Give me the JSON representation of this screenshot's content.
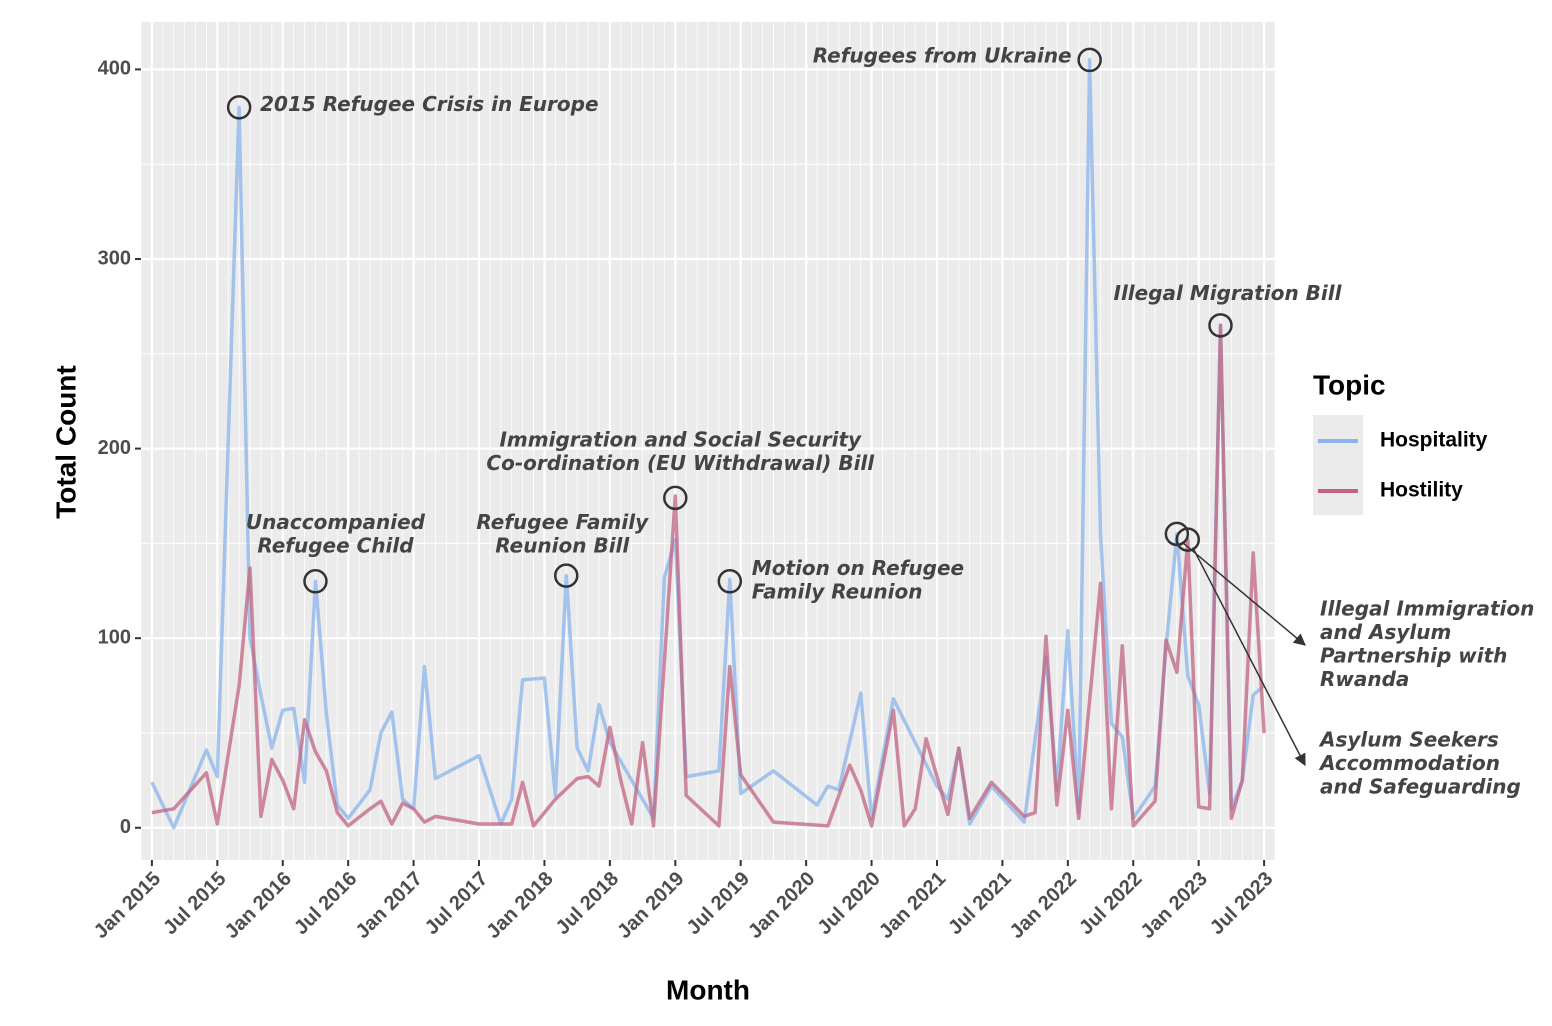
{
  "chart_data": {
    "type": "line",
    "x_label": "Month",
    "y_label": "Total Count",
    "legend_title": "Topic",
    "xlim": [
      "2014-12",
      "2023-08"
    ],
    "ylim": [
      -17,
      425
    ],
    "xticks": [
      {
        "value": "2015-01",
        "label": "Jan 2015"
      },
      {
        "value": "2015-07",
        "label": "Jul 2015"
      },
      {
        "value": "2016-01",
        "label": "Jan 2016"
      },
      {
        "value": "2016-07",
        "label": "Jul 2016"
      },
      {
        "value": "2017-01",
        "label": "Jan 2017"
      },
      {
        "value": "2017-07",
        "label": "Jul 2017"
      },
      {
        "value": "2018-01",
        "label": "Jan 2018"
      },
      {
        "value": "2018-07",
        "label": "Jul 2018"
      },
      {
        "value": "2019-01",
        "label": "Jan 2019"
      },
      {
        "value": "2019-07",
        "label": "Jul 2019"
      },
      {
        "value": "2020-01",
        "label": "Jan 2020"
      },
      {
        "value": "2020-07",
        "label": "Jul 2020"
      },
      {
        "value": "2021-01",
        "label": "Jan 2021"
      },
      {
        "value": "2021-07",
        "label": "Jul 2021"
      },
      {
        "value": "2022-01",
        "label": "Jan 2022"
      },
      {
        "value": "2022-07",
        "label": "Jul 2022"
      },
      {
        "value": "2023-01",
        "label": "Jan 2023"
      },
      {
        "value": "2023-07",
        "label": "Jul 2023"
      }
    ],
    "yticks": [
      0,
      100,
      200,
      300,
      400
    ],
    "grid": true,
    "series": [
      {
        "name": "Hospitality",
        "color": "#8ab4ec",
        "x": [
          "2015-01",
          "2015-03",
          "2015-06",
          "2015-07",
          "2015-09",
          "2015-10",
          "2015-11",
          "2015-12",
          "2016-01",
          "2016-02",
          "2016-03",
          "2016-04",
          "2016-05",
          "2016-06",
          "2016-07",
          "2016-09",
          "2016-10",
          "2016-11",
          "2016-12",
          "2017-01",
          "2017-02",
          "2017-03",
          "2017-07",
          "2017-09",
          "2017-10",
          "2017-11",
          "2018-01",
          "2018-02",
          "2018-03",
          "2018-04",
          "2018-05",
          "2018-06",
          "2018-07",
          "2018-09",
          "2018-11",
          "2018-12",
          "2019-01",
          "2019-02",
          "2019-05",
          "2019-06",
          "2019-07",
          "2019-10",
          "2020-02",
          "2020-03",
          "2020-04",
          "2020-06",
          "2020-07",
          "2020-09",
          "2020-11",
          "2021-01",
          "2021-02",
          "2021-03",
          "2021-04",
          "2021-06",
          "2021-09",
          "2021-11",
          "2021-12",
          "2022-01",
          "2022-02",
          "2022-03",
          "2022-04",
          "2022-05",
          "2022-06",
          "2022-07",
          "2022-09",
          "2022-10",
          "2022-11",
          "2022-12",
          "2023-01",
          "2023-02",
          "2023-03",
          "2023-04",
          "2023-05",
          "2023-06",
          "2023-07"
        ],
        "values": [
          24,
          0,
          41,
          27,
          380,
          100,
          70,
          42,
          62,
          63,
          24,
          130,
          60,
          12,
          5,
          20,
          50,
          61,
          15,
          10,
          85,
          26,
          38,
          2,
          15,
          78,
          79,
          17,
          133,
          42,
          30,
          65,
          45,
          25,
          5,
          132,
          152,
          27,
          30,
          131,
          18,
          30,
          12,
          22,
          20,
          71,
          5,
          68,
          45,
          22,
          15,
          42,
          2,
          22,
          3,
          90,
          20,
          104,
          8,
          405,
          155,
          55,
          48,
          5,
          22,
          95,
          155,
          80,
          65,
          18,
          265,
          10,
          25,
          70,
          75
        ]
      },
      {
        "name": "Hostility",
        "color": "#c06480",
        "x": [
          "2015-01",
          "2015-02",
          "2015-03",
          "2015-06",
          "2015-07",
          "2015-09",
          "2015-10",
          "2015-11",
          "2015-12",
          "2016-01",
          "2016-02",
          "2016-03",
          "2016-04",
          "2016-05",
          "2016-06",
          "2016-07",
          "2016-09",
          "2016-10",
          "2016-11",
          "2016-12",
          "2017-01",
          "2017-02",
          "2017-03",
          "2017-07",
          "2017-10",
          "2017-11",
          "2017-12",
          "2018-01",
          "2018-02",
          "2018-04",
          "2018-05",
          "2018-06",
          "2018-07",
          "2018-08",
          "2018-09",
          "2018-10",
          "2018-11",
          "2019-01",
          "2019-02",
          "2019-05",
          "2019-06",
          "2019-07",
          "2019-10",
          "2020-03",
          "2020-05",
          "2020-06",
          "2020-07",
          "2020-09",
          "2020-10",
          "2020-11",
          "2020-12",
          "2021-02",
          "2021-03",
          "2021-04",
          "2021-06",
          "2021-09",
          "2021-10",
          "2021-11",
          "2021-12",
          "2022-01",
          "2022-02",
          "2022-04",
          "2022-05",
          "2022-06",
          "2022-07",
          "2022-09",
          "2022-10",
          "2022-11",
          "2022-12",
          "2023-01",
          "2023-02",
          "2023-03",
          "2023-04",
          "2023-05",
          "2023-06",
          "2023-07"
        ],
        "values": [
          8,
          9,
          10,
          29,
          2,
          75,
          137,
          6,
          36,
          25,
          10,
          57,
          40,
          30,
          8,
          1,
          10,
          14,
          2,
          13,
          10,
          3,
          6,
          2,
          2,
          24,
          1,
          8,
          15,
          26,
          27,
          22,
          53,
          25,
          2,
          45,
          1,
          175,
          17,
          1,
          85,
          28,
          3,
          1,
          33,
          20,
          1,
          62,
          1,
          10,
          47,
          7,
          42,
          5,
          24,
          6,
          8,
          101,
          12,
          62,
          5,
          129,
          10,
          96,
          1,
          14,
          99,
          82,
          152,
          11,
          10,
          265,
          5,
          25,
          145,
          50
        ]
      }
    ],
    "annotations": [
      {
        "x": "2015-09",
        "y": 380,
        "label": [
          "2015 Refugee Crisis in Europe"
        ]
      },
      {
        "x": "2016-04",
        "y": 130,
        "label": [
          "Unaccompanied",
          "Refugee Child"
        ]
      },
      {
        "x": "2018-03",
        "y": 133,
        "label": [
          "Refugee Family",
          "Reunion Bill"
        ]
      },
      {
        "x": "2019-01",
        "y": 174,
        "label": [
          "Immigration and Social Security",
          "Co-ordination (EU Withdrawal) Bill"
        ]
      },
      {
        "x": "2019-06",
        "y": 130,
        "label": [
          "Motion on Refugee",
          "Family Reunion"
        ]
      },
      {
        "x": "2022-03",
        "y": 405,
        "label": [
          "Refugees from Ukraine"
        ]
      },
      {
        "x": "2023-03",
        "y": 265,
        "label": [
          "Illegal Migration Bill"
        ]
      },
      {
        "x": "2022-11",
        "y": 155,
        "label": [
          "Illegal Immigration",
          "and Asylum",
          "Partnership with",
          "Rwanda"
        ]
      },
      {
        "x": "2022-12",
        "y": 152,
        "label": [
          "Asylum Seekers",
          "Accommodation",
          "and Safeguarding"
        ]
      }
    ]
  }
}
